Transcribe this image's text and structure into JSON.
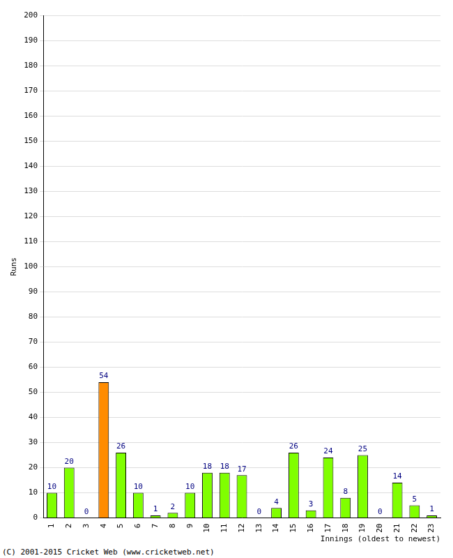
{
  "chart_data": {
    "type": "bar",
    "x_label": "Innings (oldest to newest)",
    "y_label": "Runs",
    "annotations": [
      "(C) 2001-2015 Cricket Web (www.cricketweb.net)"
    ],
    "categories": [
      "1",
      "2",
      "3",
      "4",
      "5",
      "6",
      "7",
      "8",
      "9",
      "10",
      "11",
      "12",
      "13",
      "14",
      "15",
      "16",
      "17",
      "18",
      "19",
      "20",
      "21",
      "22",
      "23"
    ],
    "values": [
      10,
      20,
      0,
      54,
      26,
      10,
      1,
      2,
      10,
      18,
      18,
      17,
      0,
      4,
      26,
      3,
      24,
      8,
      25,
      0,
      14,
      5,
      1
    ],
    "colors": [
      "#80ff00",
      "#80ff00",
      "#80ff00",
      "#ff8c00",
      "#80ff00",
      "#80ff00",
      "#80ff00",
      "#80ff00",
      "#80ff00",
      "#80ff00",
      "#80ff00",
      "#80ff00",
      "#80ff00",
      "#80ff00",
      "#80ff00",
      "#80ff00",
      "#80ff00",
      "#80ff00",
      "#80ff00",
      "#80ff00",
      "#80ff00",
      "#80ff00",
      "#80ff00"
    ],
    "ylim": [
      0,
      200
    ],
    "yticks": [
      0,
      10,
      20,
      30,
      40,
      50,
      60,
      70,
      80,
      90,
      100,
      110,
      120,
      130,
      140,
      150,
      160,
      170,
      180,
      190,
      200
    ],
    "grid": true,
    "data_labels": true
  }
}
